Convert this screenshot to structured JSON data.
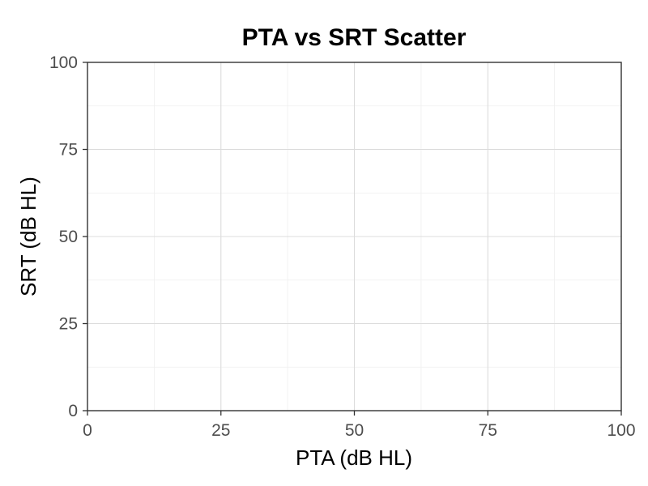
{
  "chart_data": {
    "type": "scatter",
    "title": "PTA vs SRT Scatter",
    "xlabel": "PTA (dB HL)",
    "ylabel": "SRT (dB HL)",
    "xlim": [
      0,
      100
    ],
    "ylim": [
      0,
      100
    ],
    "x_ticks": [
      0,
      25,
      50,
      75,
      100
    ],
    "y_ticks": [
      0,
      25,
      50,
      75,
      100
    ],
    "grid": true,
    "legend": "none",
    "points": []
  }
}
